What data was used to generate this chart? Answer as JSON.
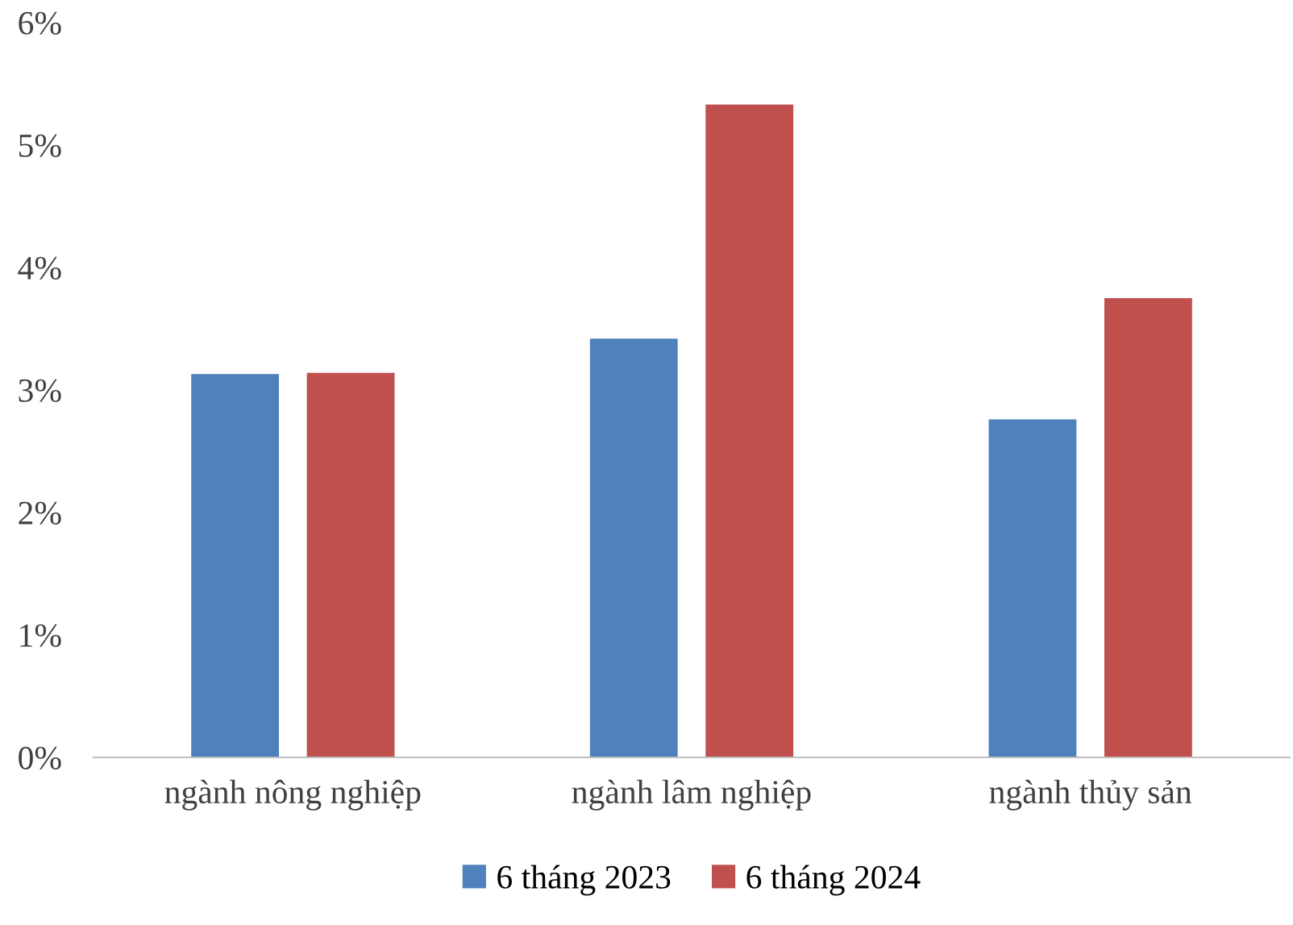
{
  "chart_data": {
    "type": "bar",
    "categories": [
      "ngành nông nghiệp",
      "ngành lâm nghiệp",
      "ngành thủy sản"
    ],
    "series": [
      {
        "name": "6 tháng 2023",
        "color": "#4f81bd",
        "values": [
          3.13,
          3.42,
          2.76
        ]
      },
      {
        "name": "6 tháng 2024",
        "color": "#c0504d",
        "values": [
          3.14,
          5.33,
          3.75
        ]
      }
    ],
    "ylim": [
      0,
      6
    ],
    "yticks": [
      {
        "value": 0,
        "label": "0%"
      },
      {
        "value": 1,
        "label": "1%"
      },
      {
        "value": 2,
        "label": "2%"
      },
      {
        "value": 3,
        "label": "3%"
      },
      {
        "value": 4,
        "label": "4%"
      },
      {
        "value": 5,
        "label": "5%"
      },
      {
        "value": 6,
        "label": "6%"
      }
    ],
    "grid": false,
    "legend": "bottom"
  }
}
